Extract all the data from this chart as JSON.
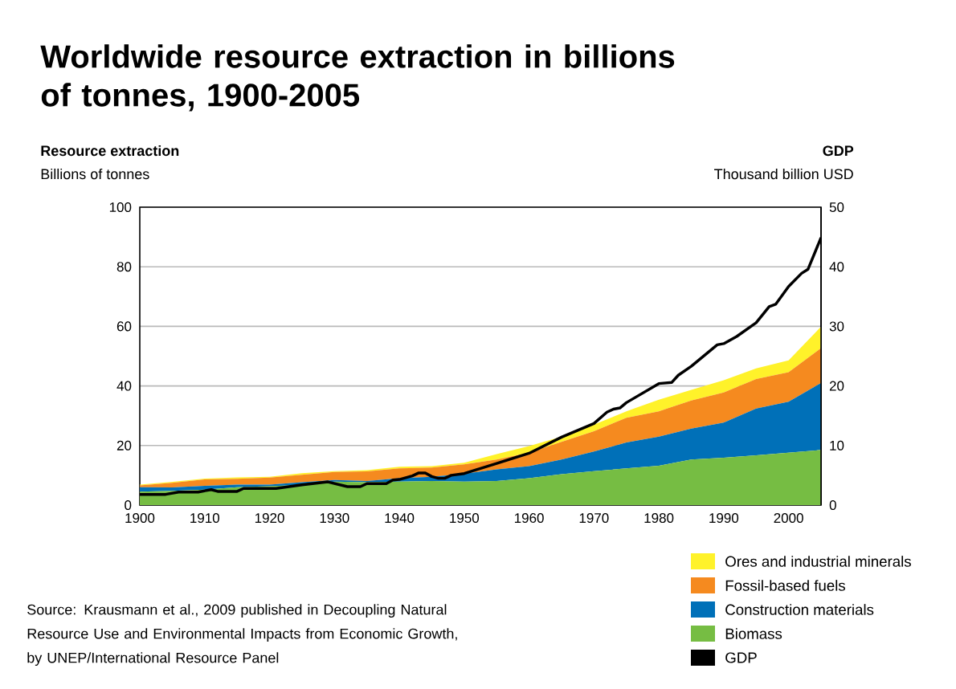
{
  "chart_data": {
    "type": "area",
    "title": "Worldwide resource extraction in billions of tonnes, 1900-2005",
    "ylabel": "Resource extraction",
    "y2label": "GDP",
    "annotations": [
      "Billions of tonnes",
      "Thousand billion USD",
      "Source: Krausmann et al., 2009 published in Decoupling Natural Resource Use and Environmental Impacts from Economic Growth, by UNEP/International Resource Panel"
    ],
    "x": [
      1900,
      1905,
      1910,
      1915,
      1920,
      1925,
      1930,
      1935,
      1940,
      1945,
      1950,
      1955,
      1960,
      1965,
      1970,
      1975,
      1980,
      1985,
      1990,
      1995,
      2000,
      2005
    ],
    "stacked": true,
    "series": [
      {
        "name": "Biomass",
        "color": "#76bd43",
        "values": [
          4.5,
          4.8,
          5.2,
          6.0,
          6.3,
          6.8,
          7.9,
          7.7,
          7.9,
          8.1,
          7.9,
          8.1,
          9.0,
          10.4,
          11.4,
          12.3,
          13.2,
          15.3,
          15.9,
          16.7,
          17.6,
          18.5
        ]
      },
      {
        "name": "Construction materials",
        "color": "#0070b8",
        "values": [
          1.5,
          1.1,
          1.3,
          0.9,
          0.6,
          0.9,
          0.5,
          0.4,
          1.1,
          1.4,
          2.6,
          3.9,
          4.1,
          4.9,
          6.6,
          8.7,
          9.8,
          10.4,
          11.8,
          15.7,
          17.1,
          22.5
        ]
      },
      {
        "name": "Fossil-based fuels",
        "color": "#f58a1f",
        "values": [
          0.6,
          1.6,
          2.1,
          1.9,
          2.3,
          2.5,
          2.7,
          3.2,
          3.3,
          3.1,
          3.2,
          3.3,
          4.5,
          5.9,
          6.8,
          8.3,
          8.5,
          9.4,
          10.1,
          9.9,
          9.9,
          11.7
        ]
      },
      {
        "name": "Ores and industrial minerals",
        "color": "#fff22a",
        "values": [
          0.3,
          0.3,
          0.3,
          0.5,
          0.3,
          0.5,
          0.3,
          0.4,
          0.6,
          0.5,
          0.5,
          1.8,
          2.2,
          1.8,
          2.2,
          2.2,
          3.9,
          3.6,
          4.1,
          3.6,
          4.0,
          7.2
        ]
      },
      {
        "name": "GDP",
        "type": "line",
        "axis": "y2",
        "color": "#000000",
        "x": [
          1900,
          1904,
          1906,
          1909,
          1911,
          1912,
          1915,
          1916,
          1921,
          1925,
          1929,
          1932,
          1934,
          1935,
          1938,
          1939,
          1940,
          1942,
          1943,
          1944,
          1945,
          1946,
          1947,
          1948,
          1950,
          1955,
          1960,
          1965,
          1970,
          1972,
          1973,
          1974,
          1975,
          1980,
          1982,
          1983,
          1985,
          1989,
          1990,
          1992,
          1995,
          1997,
          1998,
          2000,
          2002,
          2003,
          2005
        ],
        "values": [
          1.8,
          1.8,
          2.2,
          2.2,
          2.6,
          2.3,
          2.3,
          2.8,
          2.8,
          3.4,
          3.9,
          3.1,
          3.1,
          3.6,
          3.6,
          4.2,
          4.3,
          4.9,
          5.4,
          5.4,
          4.8,
          4.5,
          4.5,
          5.0,
          5.3,
          7.0,
          8.7,
          11.4,
          13.7,
          15.6,
          16.1,
          16.3,
          17.2,
          20.4,
          20.6,
          21.8,
          23.3,
          26.9,
          27.1,
          28.3,
          30.6,
          33.3,
          33.7,
          36.7,
          38.9,
          39.6,
          44.9
        ]
      }
    ],
    "xlim": [
      1900,
      2005
    ],
    "xticks": [
      1900,
      1910,
      1920,
      1930,
      1940,
      1950,
      1960,
      1970,
      1980,
      1990,
      2000
    ],
    "ylim": [
      0,
      100
    ],
    "yticks": [
      0,
      20,
      40,
      60,
      80,
      100
    ],
    "y2lim": [
      0,
      50
    ],
    "y2ticks": [
      0,
      10,
      20,
      30,
      40,
      50
    ],
    "grid": "y",
    "legend": "bottom right",
    "marker": "none",
    "line_style": "solid"
  }
}
